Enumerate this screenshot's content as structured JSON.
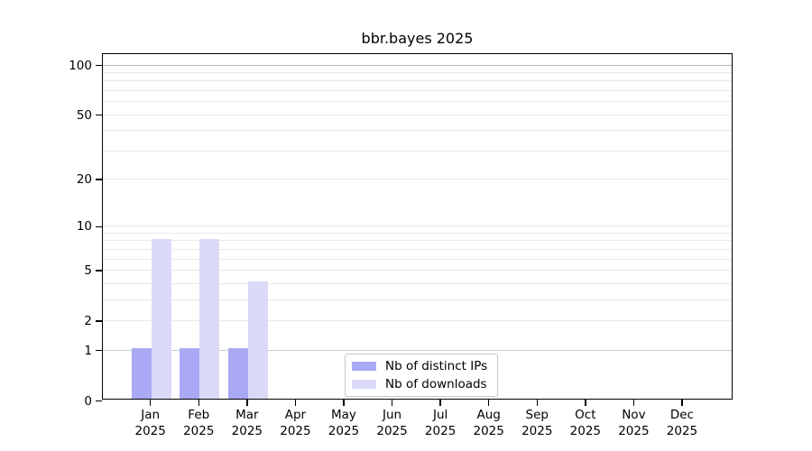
{
  "title": "bbr.bayes 2025",
  "colors": {
    "bar_ips": "#a9a9f5",
    "bar_downloads": "#dadaf8",
    "grid_minor": "#e9e9e9",
    "grid_level1": "#c9c9c9",
    "grid_level100": "#b5b5b5",
    "axis": "#000000",
    "legend_border": "#c8c8c8",
    "text": "#000000"
  },
  "legend": {
    "items": [
      {
        "label": "Nb of distinct IPs",
        "color": "#a9a9f5"
      },
      {
        "label": "Nb of downloads",
        "color": "#dadaf8"
      }
    ]
  },
  "chart_data": {
    "type": "bar",
    "title": "bbr.bayes 2025",
    "categories": [
      "Jan",
      "Feb",
      "Mar",
      "Apr",
      "May",
      "Jun",
      "Jul",
      "Aug",
      "Sep",
      "Oct",
      "Nov",
      "Dec"
    ],
    "x_tick_second_line": "2025",
    "series": [
      {
        "name": "Nb of distinct IPs",
        "color": "#a9a9f5",
        "values": [
          1,
          1,
          1,
          0,
          0,
          0,
          0,
          0,
          0,
          0,
          0,
          0
        ]
      },
      {
        "name": "Nb of downloads",
        "color": "#dadaf8",
        "values": [
          8,
          8,
          4,
          0,
          0,
          0,
          0,
          0,
          0,
          0,
          0,
          0
        ]
      }
    ],
    "y_scale": "log10(1+y)",
    "y_ticks": [
      0,
      1,
      2,
      5,
      10,
      20,
      50,
      100
    ],
    "gridline_values": [
      1,
      2,
      3,
      4,
      5,
      6,
      7,
      8,
      9,
      10,
      20,
      30,
      40,
      50,
      60,
      70,
      80,
      90,
      100
    ],
    "ylim": [
      0,
      115
    ],
    "grid": true,
    "xlabel": "",
    "ylabel": "",
    "legend_position": "inside bottom-center"
  }
}
